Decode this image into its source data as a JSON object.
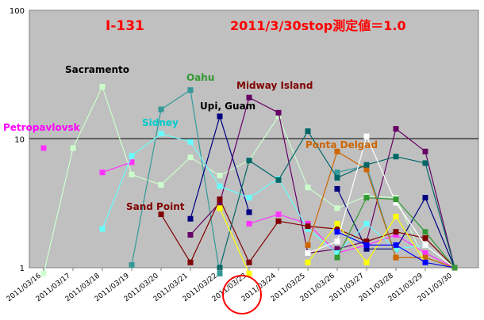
{
  "chart_data": {
    "type": "line",
    "title": "I-131",
    "subtitle": "2011/3/30stop測定値＝1.0",
    "yscale": "log",
    "ylim": [
      1,
      100
    ],
    "yticks": [
      "100",
      "10",
      "1"
    ],
    "grid": "horizontal line at 10",
    "categories": [
      "2011/03/16",
      "2011/03/17",
      "2011/03/18",
      "2011/03/19",
      "2011/03/20",
      "2011/03/21",
      "2011/03/22",
      "2011/03/23",
      "2011/03/24",
      "2011/03/25",
      "2011/03/26",
      "2011/03/27",
      "2011/03/28",
      "2011/03/29",
      "2011/03/30"
    ],
    "highlighted_category": "2011/03/23",
    "series": [
      {
        "name": "Sacramento",
        "color": "#ccffcc",
        "label_color": "#000000",
        "values": [
          0.9,
          8.5,
          25.5,
          5.3,
          4.4,
          7.2,
          5.2,
          6.8,
          15.0,
          4.2,
          2.9,
          3.6,
          3.5,
          1.1,
          1.0
        ]
      },
      {
        "name": "Petropavlovsk",
        "color": "#ff33ff",
        "label_color": "#ff00ff",
        "values": [
          8.5,
          null,
          5.5,
          6.6,
          null,
          null,
          null,
          2.2,
          2.6,
          2.2,
          1.3,
          1.5,
          1.8,
          1.3,
          1.0
        ]
      },
      {
        "name": "Oahu",
        "color": "#339999",
        "label_color": "#339933",
        "values": [
          null,
          null,
          null,
          1.05,
          17.0,
          24.0,
          0.9,
          null,
          null,
          null,
          5.5,
          6.2,
          1.2,
          1.2,
          1.0
        ]
      },
      {
        "name": "Midway Island",
        "color": "#660066",
        "label_color": "#800000",
        "values": [
          null,
          null,
          null,
          null,
          null,
          1.8,
          3.2,
          21.0,
          16.0,
          1.3,
          1.4,
          1.6,
          12.0,
          8.0,
          1.0
        ]
      },
      {
        "name": "Upi, Guam",
        "color": "#000080",
        "label_color": "#000000",
        "values": [
          null,
          null,
          null,
          null,
          null,
          2.4,
          15.0,
          2.7,
          null,
          null,
          4.1,
          1.4,
          1.4,
          3.5,
          1.0
        ]
      },
      {
        "name": "Sidney",
        "color": "#66ffff",
        "label_color": "#00cccc",
        "values": [
          null,
          null,
          2.0,
          7.4,
          11.0,
          9.5,
          4.3,
          3.5,
          4.9,
          2.0,
          1.3,
          2.2,
          1.4,
          1.5,
          1.0
        ]
      },
      {
        "name": "Sand Point",
        "color": "#800000",
        "label_color": "#800000",
        "values": [
          null,
          null,
          null,
          null,
          2.6,
          1.1,
          3.4,
          1.1,
          2.3,
          2.1,
          2.0,
          1.6,
          1.9,
          1.7,
          1.0
        ]
      },
      {
        "name": "Ponta Delgad",
        "color": "#cc6600",
        "label_color": "#cc6600",
        "values": [
          null,
          null,
          null,
          null,
          null,
          null,
          null,
          null,
          null,
          1.5,
          8.0,
          5.8,
          1.2,
          1.2,
          1.0
        ]
      },
      {
        "name": "",
        "color": "#006666",
        "label_color": "#006666",
        "values": [
          null,
          null,
          null,
          null,
          null,
          null,
          1.0,
          6.8,
          4.8,
          11.5,
          5.0,
          6.3,
          7.3,
          6.5,
          1.0
        ]
      },
      {
        "name": "",
        "color": "#ffff00",
        "label_color": "#ffff00",
        "values": [
          null,
          null,
          null,
          null,
          null,
          null,
          2.9,
          0.9,
          null,
          1.1,
          2.2,
          1.1,
          2.5,
          1.1,
          1.0
        ]
      },
      {
        "name": "",
        "color": "#ffffff",
        "label_color": "#ffffff",
        "values": [
          null,
          null,
          null,
          null,
          null,
          null,
          null,
          null,
          null,
          1.3,
          1.6,
          10.5,
          3.2,
          1.5,
          1.0
        ]
      },
      {
        "name": "",
        "color": "#0000ff",
        "label_color": "#0000ff",
        "values": [
          null,
          null,
          null,
          null,
          null,
          null,
          null,
          null,
          null,
          null,
          1.9,
          1.5,
          1.5,
          1.1,
          1.0
        ]
      },
      {
        "name": "",
        "color": "#339933",
        "label_color": "#339933",
        "values": [
          null,
          null,
          null,
          null,
          null,
          null,
          null,
          null,
          null,
          null,
          1.2,
          3.5,
          3.4,
          1.9,
          1.0
        ]
      }
    ]
  }
}
